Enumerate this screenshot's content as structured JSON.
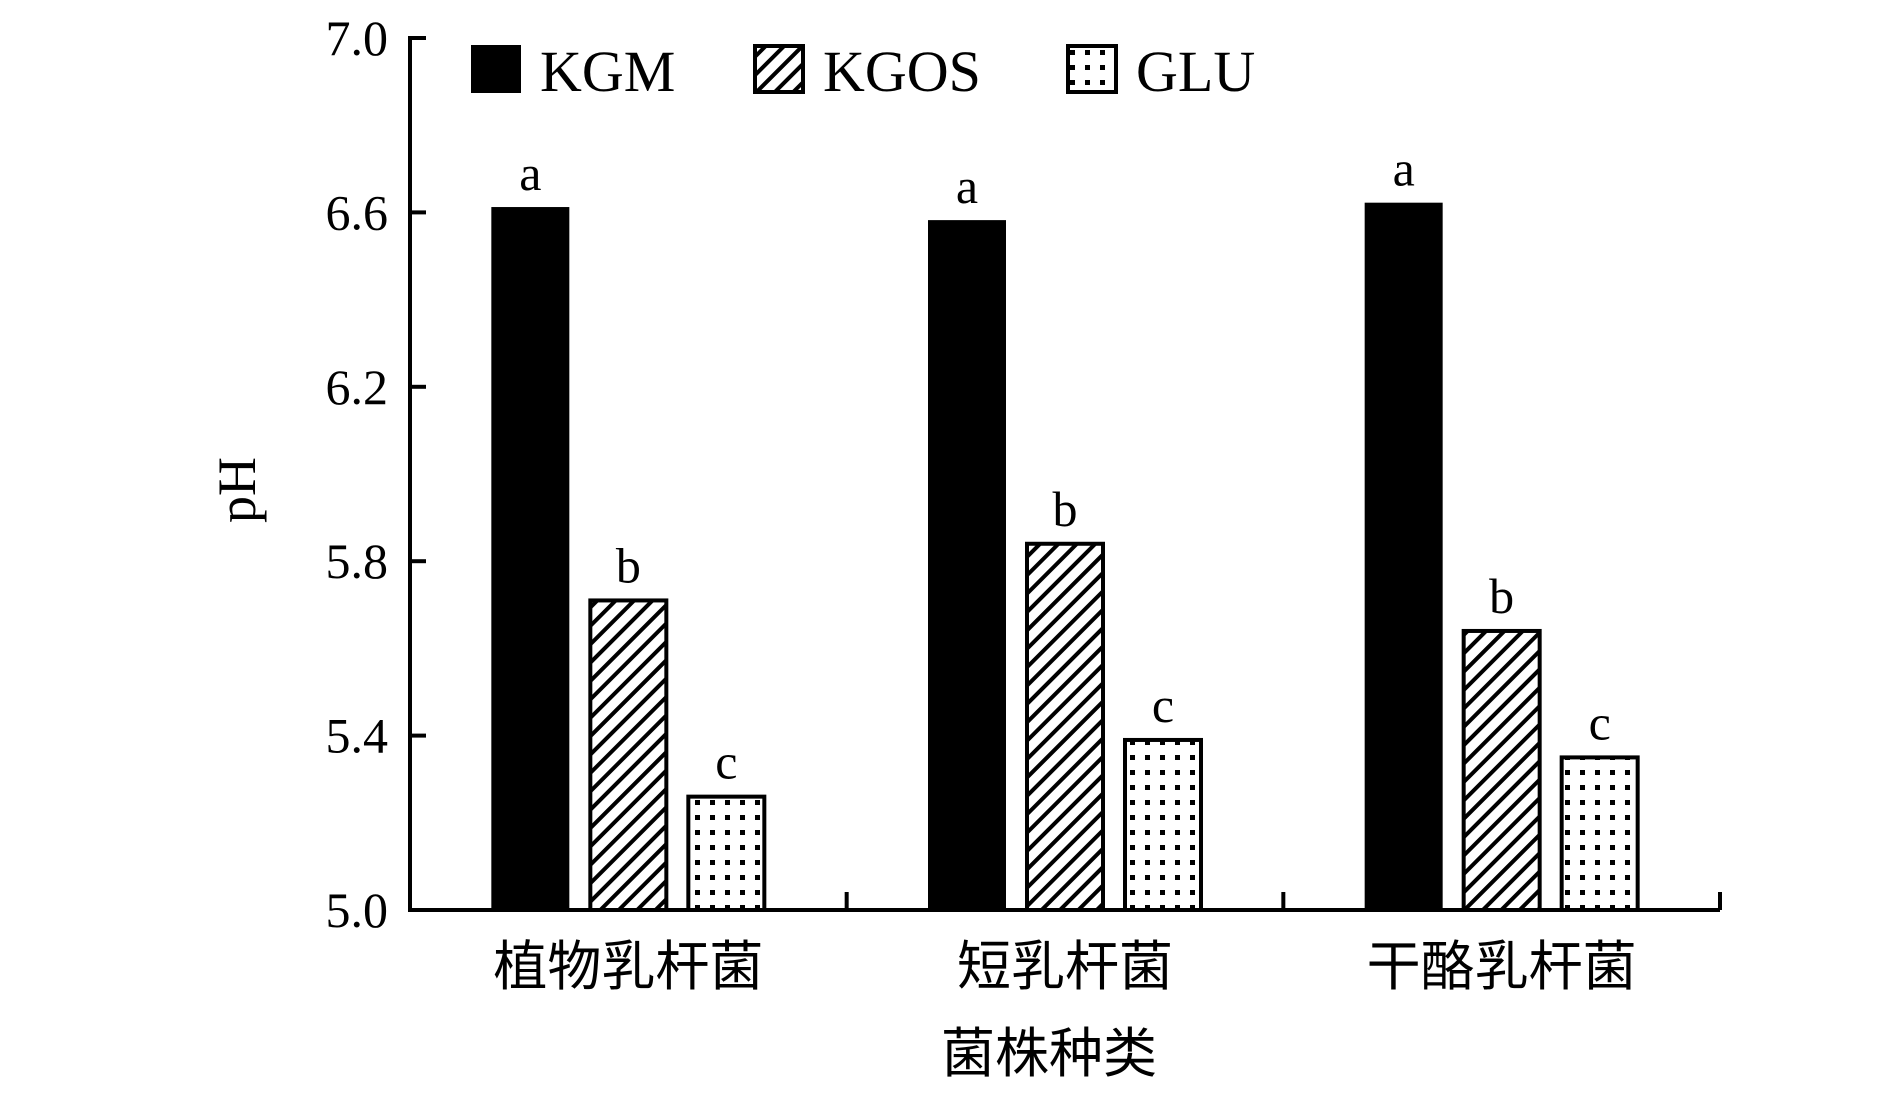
{
  "chart_data": {
    "type": "bar",
    "title": "",
    "xlabel": "菌株种类",
    "ylabel": "pH",
    "ylim": [
      5.0,
      7.0
    ],
    "yticks": [
      "5.0",
      "5.4",
      "5.8",
      "6.2",
      "6.6",
      "7.0"
    ],
    "categories": [
      "植物乳杆菌",
      "短乳杆菌",
      "干酪乳杆菌"
    ],
    "series": [
      {
        "name": "KGM",
        "values": [
          6.61,
          6.58,
          6.62
        ],
        "labels": [
          "a",
          "a",
          "a"
        ],
        "pattern": "solid"
      },
      {
        "name": "KGOS",
        "values": [
          5.71,
          5.84,
          5.64
        ],
        "labels": [
          "b",
          "b",
          "b"
        ],
        "pattern": "hatch"
      },
      {
        "name": "GLU",
        "values": [
          5.26,
          5.39,
          5.35
        ],
        "labels": [
          "c",
          "c",
          "c"
        ],
        "pattern": "dots"
      }
    ],
    "legend_position": "top",
    "grid": false
  },
  "colors": {
    "ink": "#000000",
    "background": "#ffffff"
  }
}
